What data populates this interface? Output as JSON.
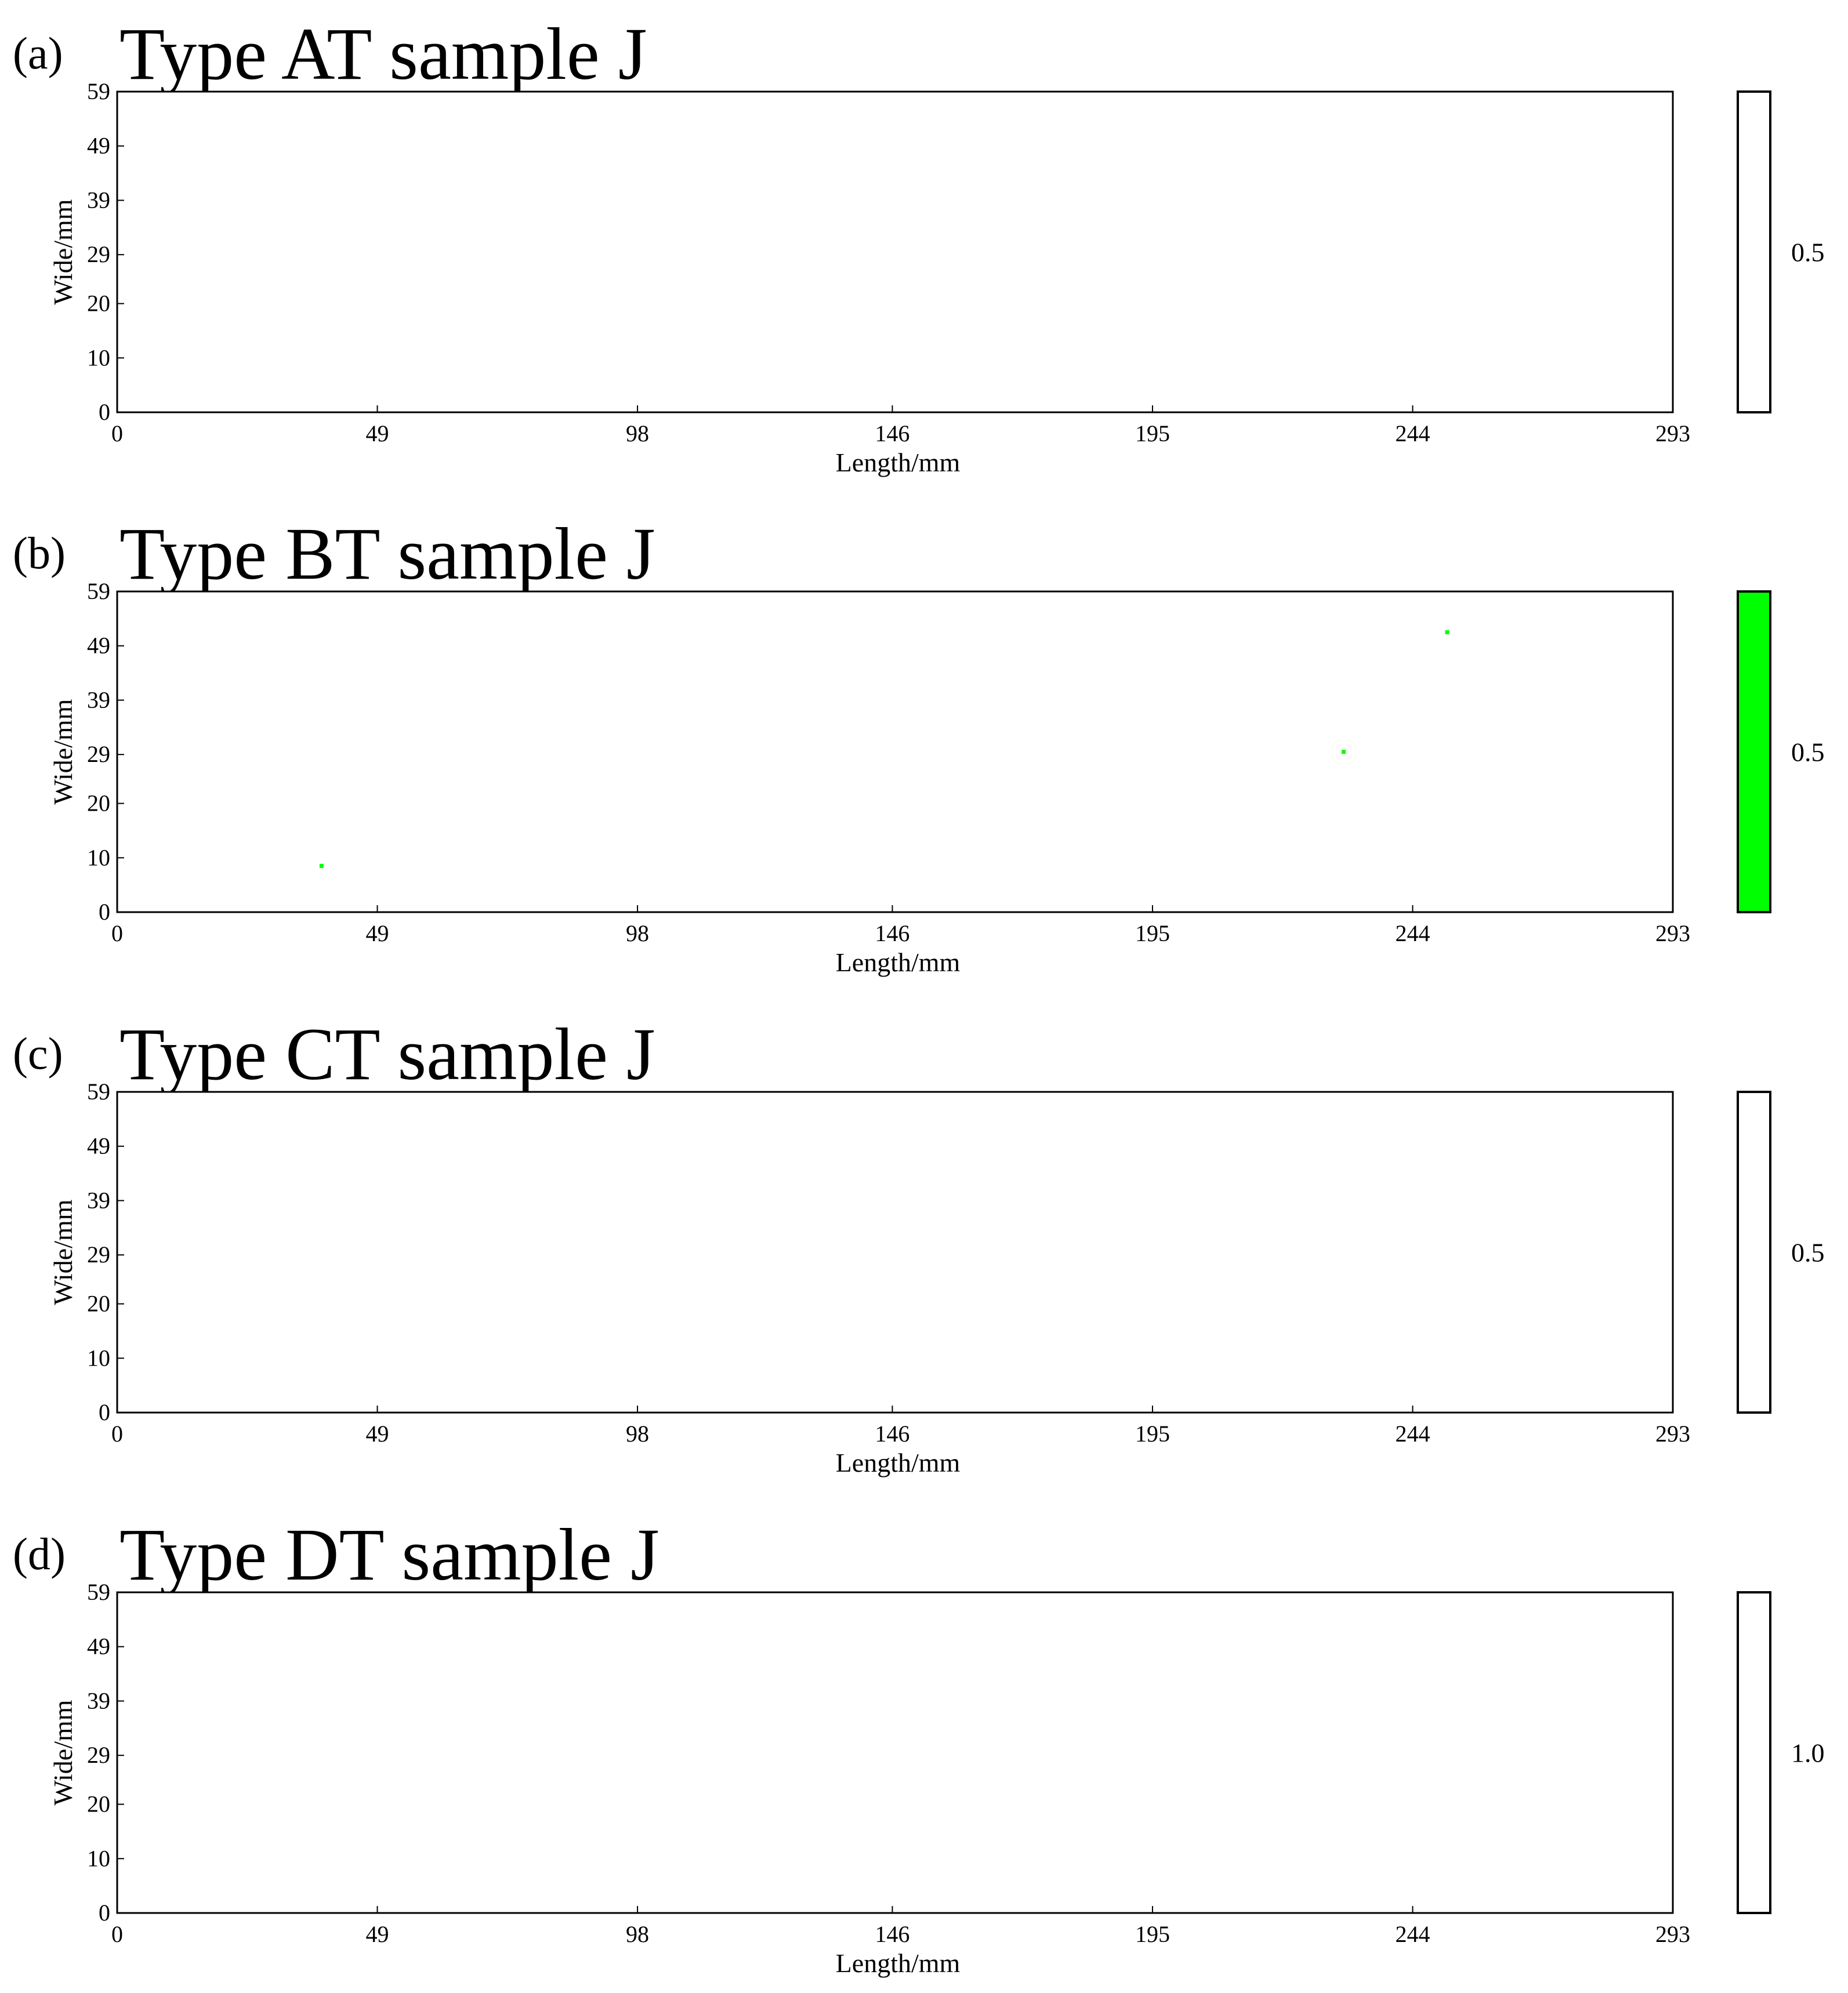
{
  "chart_data": [
    {
      "type": "heatmap",
      "panel_label": "(a)",
      "title": "Type AT sample J",
      "xlabel": "Length/mm",
      "ylabel": "Wide/mm",
      "xticks": [
        "0",
        "49",
        "98",
        "146",
        "195",
        "244",
        "293"
      ],
      "yticks": [
        "0",
        "10",
        "20",
        "29",
        "39",
        "49",
        "59"
      ],
      "xlim": [
        0,
        293
      ],
      "ylim": [
        0,
        59
      ],
      "points": [],
      "point_color": "#00ff00",
      "colorbar": {
        "fill": "#ffffff",
        "tick": "0.5"
      }
    },
    {
      "type": "heatmap",
      "panel_label": "(b)",
      "title": "Type BT sample J",
      "xlabel": "Length/mm",
      "ylabel": "Wide/mm",
      "xticks": [
        "0",
        "49",
        "98",
        "146",
        "195",
        "244",
        "293"
      ],
      "yticks": [
        "0",
        "10",
        "20",
        "29",
        "39",
        "49",
        "59"
      ],
      "xlim": [
        0,
        293
      ],
      "ylim": [
        0,
        59
      ],
      "points": [
        {
          "x": 38.5,
          "y": 8.5
        },
        {
          "x": 231,
          "y": 29.5
        },
        {
          "x": 250.5,
          "y": 51.5
        }
      ],
      "point_color": "#00ff00",
      "colorbar": {
        "fill": "#00ff00",
        "tick": "0.5"
      }
    },
    {
      "type": "heatmap",
      "panel_label": "(c)",
      "title": "Type CT sample J",
      "xlabel": "Length/mm",
      "ylabel": "Wide/mm",
      "xticks": [
        "0",
        "49",
        "98",
        "146",
        "195",
        "244",
        "293"
      ],
      "yticks": [
        "0",
        "10",
        "20",
        "29",
        "39",
        "49",
        "59"
      ],
      "xlim": [
        0,
        293
      ],
      "ylim": [
        0,
        59
      ],
      "points": [],
      "point_color": "#00ff00",
      "colorbar": {
        "fill": "#ffffff",
        "tick": "0.5"
      }
    },
    {
      "type": "heatmap",
      "panel_label": "(d)",
      "title": "Type DT sample J",
      "xlabel": "Length/mm",
      "ylabel": "Wide/mm",
      "xticks": [
        "0",
        "49",
        "98",
        "146",
        "195",
        "244",
        "293"
      ],
      "yticks": [
        "0",
        "10",
        "20",
        "29",
        "39",
        "49",
        "59"
      ],
      "xlim": [
        0,
        293
      ],
      "ylim": [
        0,
        59
      ],
      "points": [],
      "point_color": "#00ff00",
      "colorbar": {
        "fill": "#ffffff",
        "tick": "1.0"
      }
    }
  ]
}
